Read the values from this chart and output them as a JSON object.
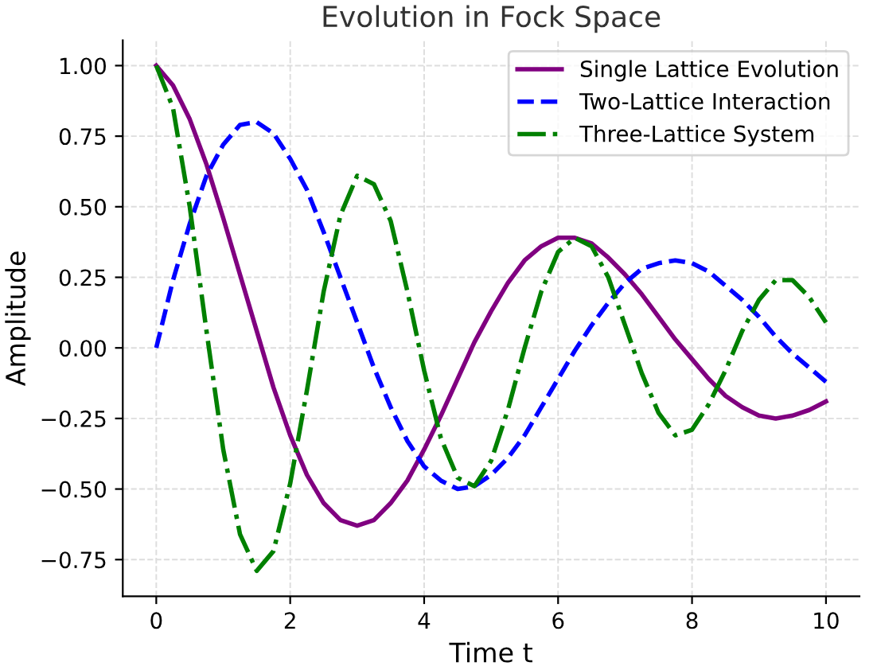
{
  "chart_data": {
    "type": "line",
    "title": "Evolution in Fock Space",
    "xlabel": "Time t",
    "ylabel": "Amplitude",
    "x": [
      0,
      0.25,
      0.5,
      0.75,
      1,
      1.25,
      1.5,
      1.75,
      2,
      2.25,
      2.5,
      2.75,
      3,
      3.25,
      3.5,
      3.75,
      4,
      4.25,
      4.5,
      4.75,
      5,
      5.25,
      5.5,
      5.75,
      6,
      6.25,
      6.5,
      6.75,
      7,
      7.25,
      7.5,
      7.75,
      8,
      8.25,
      8.5,
      8.75,
      9,
      9.25,
      9.5,
      9.75,
      10
    ],
    "series": [
      {
        "name": "Single Lattice Evolution",
        "color": "#800080",
        "line_style": "solid",
        "values": [
          1.0,
          0.93,
          0.81,
          0.65,
          0.46,
          0.26,
          0.06,
          -0.14,
          -0.31,
          -0.45,
          -0.55,
          -0.61,
          -0.63,
          -0.61,
          -0.55,
          -0.47,
          -0.36,
          -0.24,
          -0.11,
          0.02,
          0.13,
          0.23,
          0.31,
          0.36,
          0.39,
          0.39,
          0.37,
          0.32,
          0.26,
          0.19,
          0.11,
          0.03,
          -0.04,
          -0.11,
          -0.17,
          -0.21,
          -0.24,
          -0.25,
          -0.24,
          -0.22,
          -0.19
        ]
      },
      {
        "name": "Two-Lattice Interaction",
        "color": "#0000ff",
        "line_style": "dashed",
        "values": [
          0.0,
          0.24,
          0.44,
          0.61,
          0.72,
          0.79,
          0.8,
          0.76,
          0.67,
          0.56,
          0.41,
          0.25,
          0.09,
          -0.07,
          -0.21,
          -0.33,
          -0.42,
          -0.47,
          -0.5,
          -0.49,
          -0.45,
          -0.39,
          -0.31,
          -0.21,
          -0.11,
          -0.01,
          0.08,
          0.16,
          0.23,
          0.28,
          0.3,
          0.31,
          0.3,
          0.27,
          0.22,
          0.17,
          0.11,
          0.04,
          -0.02,
          -0.07,
          -0.12
        ]
      },
      {
        "name": "Three-Lattice System",
        "color": "#008000",
        "line_style": "dashdot",
        "values": [
          1.0,
          0.85,
          0.5,
          0.06,
          -0.36,
          -0.66,
          -0.79,
          -0.72,
          -0.48,
          -0.15,
          0.2,
          0.47,
          0.61,
          0.58,
          0.45,
          0.2,
          -0.08,
          -0.32,
          -0.46,
          -0.49,
          -0.4,
          -0.22,
          0.0,
          0.2,
          0.34,
          0.39,
          0.36,
          0.25,
          0.08,
          -0.09,
          -0.23,
          -0.31,
          -0.29,
          -0.2,
          -0.08,
          0.06,
          0.17,
          0.24,
          0.24,
          0.18,
          0.09
        ]
      }
    ],
    "xlim": [
      -0.5,
      10.5
    ],
    "ylim": [
      -0.88,
      1.09
    ],
    "xticks": [
      0,
      2,
      4,
      6,
      8,
      10
    ],
    "yticks": [
      {
        "value": -0.75,
        "label": "−0.75"
      },
      {
        "value": -0.5,
        "label": "−0.50"
      },
      {
        "value": -0.25,
        "label": "−0.25"
      },
      {
        "value": 0,
        "label": "0.00"
      },
      {
        "value": 0.25,
        "label": "0.25"
      },
      {
        "value": 0.5,
        "label": "0.50"
      },
      {
        "value": 0.75,
        "label": "0.75"
      },
      {
        "value": 1,
        "label": "1.00"
      }
    ],
    "grid": true,
    "legend": "top right",
    "marker": "none"
  }
}
